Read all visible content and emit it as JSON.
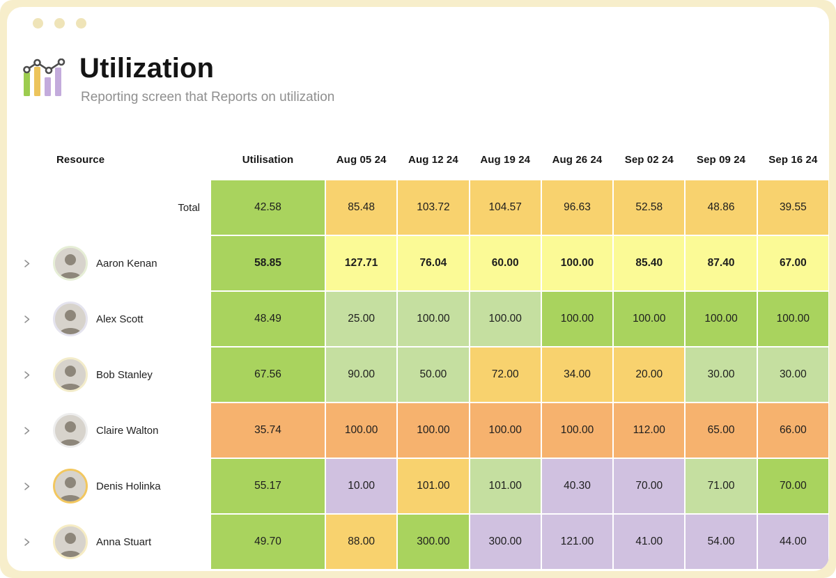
{
  "theme": {
    "frame": "#f7eecb",
    "dot": "#efe4b8",
    "window": "#ffffff",
    "title": "#141414",
    "subtitle": "#8f8f8f",
    "chevron": "#8f8f8f",
    "icon_green": "#9ccc4f",
    "icon_yellow": "#ecc45c",
    "icon_purple": "#c3abdc",
    "icon_line": "#4d4d4d"
  },
  "header": {
    "icon": "bar-line-chart-icon",
    "title": "Utilization",
    "subtitle": "Reporting screen that Reports on utilization"
  },
  "table": {
    "resource_header": "Resource",
    "columns": [
      "Utilisation",
      "Aug 05 24",
      "Aug 12 24",
      "Aug 19 24",
      "Aug 26 24",
      "Sep 02 24",
      "Sep 09 24",
      "Sep 16 24"
    ],
    "palette": {
      "green": "#a9d35e",
      "lightGreen": "#c5dfa0",
      "yellow": "#f8d26e",
      "paleYellow": "#fbfa96",
      "orange": "#f6b26e",
      "purple": "#d0c1e0"
    },
    "rows": [
      {
        "label": "Total",
        "type": "total",
        "bold": false,
        "ring": null,
        "values": [
          "42.58",
          "85.48",
          "103.72",
          "104.57",
          "96.63",
          "52.58",
          "48.86",
          "39.55"
        ],
        "colors": [
          "green",
          "yellow",
          "yellow",
          "yellow",
          "yellow",
          "yellow",
          "yellow",
          "yellow"
        ]
      },
      {
        "label": "Aaron Kenan",
        "type": "person",
        "bold": true,
        "ring": "#e6eed6",
        "values": [
          "58.85",
          "127.71",
          "76.04",
          "60.00",
          "100.00",
          "85.40",
          "87.40",
          "67.00"
        ],
        "colors": [
          "green",
          "paleYellow",
          "paleYellow",
          "paleYellow",
          "paleYellow",
          "paleYellow",
          "paleYellow",
          "paleYellow"
        ]
      },
      {
        "label": "Alex Scott",
        "type": "person",
        "bold": false,
        "ring": "#e4e3ee",
        "values": [
          "48.49",
          "25.00",
          "100.00",
          "100.00",
          "100.00",
          "100.00",
          "100.00",
          "100.00"
        ],
        "colors": [
          "green",
          "lightGreen",
          "lightGreen",
          "lightGreen",
          "green",
          "green",
          "green",
          "green"
        ]
      },
      {
        "label": "Bob Stanley",
        "type": "person",
        "bold": false,
        "ring": "#f3ecca",
        "values": [
          "67.56",
          "90.00",
          "50.00",
          "72.00",
          "34.00",
          "20.00",
          "30.00",
          "30.00"
        ],
        "colors": [
          "green",
          "lightGreen",
          "lightGreen",
          "yellow",
          "yellow",
          "yellow",
          "lightGreen",
          "lightGreen"
        ]
      },
      {
        "label": "Claire Walton",
        "type": "person",
        "bold": false,
        "ring": "#ededed",
        "values": [
          "35.74",
          "100.00",
          "100.00",
          "100.00",
          "100.00",
          "112.00",
          "65.00",
          "66.00"
        ],
        "colors": [
          "orange",
          "orange",
          "orange",
          "orange",
          "orange",
          "orange",
          "orange",
          "orange"
        ]
      },
      {
        "label": "Denis Holinka",
        "type": "person",
        "bold": false,
        "ring": "#f2c75f",
        "values": [
          "55.17",
          "10.00",
          "101.00",
          "101.00",
          "40.30",
          "70.00",
          "71.00",
          "70.00"
        ],
        "colors": [
          "green",
          "purple",
          "yellow",
          "lightGreen",
          "purple",
          "purple",
          "lightGreen",
          "green"
        ]
      },
      {
        "label": "Anna Stuart",
        "type": "person",
        "bold": false,
        "ring": "#f6ecc4",
        "values": [
          "49.70",
          "88.00",
          "300.00",
          "300.00",
          "121.00",
          "41.00",
          "54.00",
          "44.00"
        ],
        "colors": [
          "green",
          "yellow",
          "green",
          "purple",
          "purple",
          "purple",
          "purple",
          "purple"
        ]
      }
    ]
  }
}
